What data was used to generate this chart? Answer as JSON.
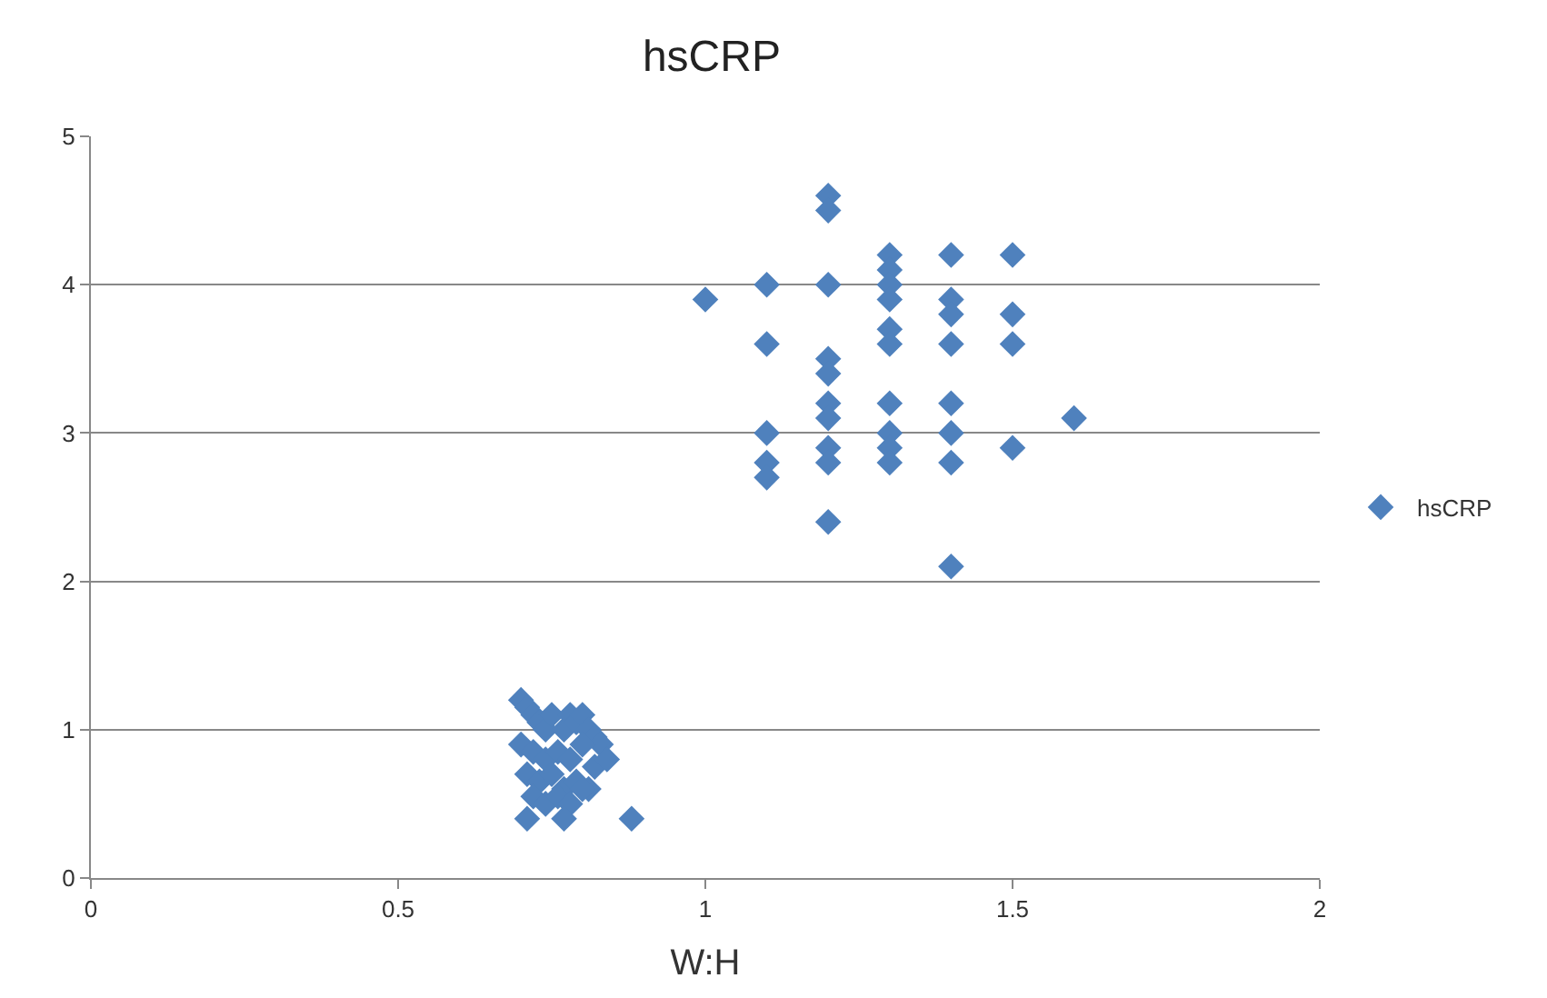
{
  "chart_data": {
    "type": "scatter",
    "title": "hsCRP",
    "xlabel": "W:H",
    "xlim": [
      0,
      2
    ],
    "xticks": [
      0,
      0.5,
      1,
      1.5,
      2
    ],
    "ylim": [
      0,
      5
    ],
    "yticks": [
      0,
      1,
      2,
      3,
      4,
      5
    ],
    "grid": "y",
    "legend": "right",
    "marker": "diamond",
    "series": [
      {
        "name": "hsCRP",
        "color": "#4f81bd",
        "x": [
          1.0,
          1.1,
          1.1,
          1.1,
          1.1,
          1.1,
          1.2,
          1.2,
          1.2,
          1.2,
          1.2,
          1.2,
          1.2,
          1.2,
          1.2,
          1.2,
          1.3,
          1.3,
          1.3,
          1.3,
          1.3,
          1.3,
          1.3,
          1.3,
          1.3,
          1.3,
          1.4,
          1.4,
          1.4,
          1.4,
          1.4,
          1.4,
          1.4,
          1.4,
          1.5,
          1.5,
          1.5,
          1.5,
          1.6,
          0.7,
          0.71,
          0.72,
          0.73,
          0.74,
          0.75,
          0.77,
          0.78,
          0.79,
          0.8,
          0.81,
          0.82,
          0.83,
          0.7,
          0.72,
          0.74,
          0.76,
          0.78,
          0.8,
          0.82,
          0.71,
          0.73,
          0.75,
          0.77,
          0.79,
          0.81,
          0.72,
          0.74,
          0.76,
          0.78,
          0.8,
          0.88,
          0.71,
          0.77,
          0.84
        ],
        "values": [
          3.9,
          4.0,
          3.6,
          3.0,
          2.8,
          2.7,
          4.6,
          4.5,
          4.0,
          3.5,
          3.4,
          3.2,
          3.1,
          2.9,
          2.8,
          2.4,
          4.2,
          4.1,
          4.0,
          3.9,
          3.7,
          3.6,
          3.2,
          3.0,
          2.9,
          2.8,
          4.2,
          3.9,
          3.8,
          3.6,
          3.2,
          3.0,
          2.8,
          2.1,
          4.2,
          3.8,
          3.6,
          2.9,
          3.1,
          1.2,
          1.15,
          1.1,
          1.05,
          1.0,
          1.1,
          1.0,
          1.1,
          1.05,
          1.1,
          1.0,
          0.95,
          0.9,
          0.9,
          0.85,
          0.8,
          0.85,
          0.8,
          0.9,
          0.75,
          0.7,
          0.65,
          0.7,
          0.6,
          0.65,
          0.6,
          0.55,
          0.5,
          0.55,
          0.5,
          0.6,
          0.4,
          0.4,
          0.4,
          0.8
        ]
      }
    ]
  }
}
